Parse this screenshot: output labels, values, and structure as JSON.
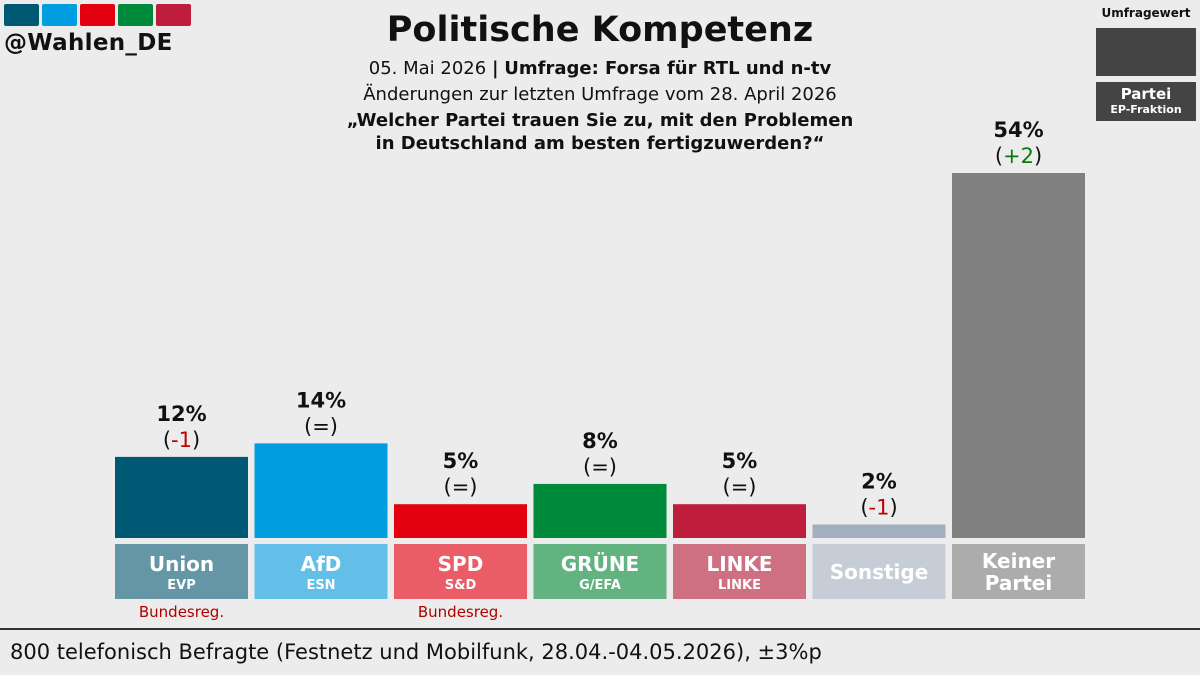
{
  "handle": "@Wahlen_DE",
  "logo_colors": [
    "#005974",
    "#009ee0",
    "#e3000f",
    "#008a3c",
    "#be1e3c"
  ],
  "header": {
    "title": "Politische Kompetenz",
    "date": "05. Mai 2026",
    "separator": "|",
    "source": "Umfrage: Forsa für RTL und n-tv",
    "changes": "Änderungen zur letzten Umfrage vom 28. April 2026",
    "question_line1": "„Welcher Partei trauen Sie zu, mit den Problemen",
    "question_line2": "in Deutschland am besten fertigzuwerden?“"
  },
  "legend": {
    "title": "Umfragewert",
    "party_label": "Partei",
    "faction_label": "EP-Fraktion"
  },
  "chart_data": {
    "type": "bar",
    "categories": [
      "Union",
      "AfD",
      "SPD",
      "GRÜNE",
      "LINKE",
      "Sonstige",
      "Keiner Partei"
    ],
    "values": [
      12,
      14,
      5,
      8,
      5,
      2,
      54
    ],
    "value_labels": [
      "12%",
      "14%",
      "5%",
      "8%",
      "5%",
      "2%",
      "54%"
    ],
    "changes": [
      "(-1)",
      "(=)",
      "(=)",
      "(=)",
      "(=)",
      "(-1)",
      "(+2)"
    ],
    "change_kind": [
      "neg",
      "eq",
      "eq",
      "eq",
      "eq",
      "neg",
      "pos"
    ],
    "factions": [
      "EVP",
      "ESN",
      "S&D",
      "G/EFA",
      "LINKE",
      "",
      ""
    ],
    "notes": [
      "Bundesreg.",
      "",
      "Bundesreg.",
      "",
      "",
      "",
      ""
    ],
    "bar_colors": [
      "#005974",
      "#009ee0",
      "#e3000f",
      "#008a3c",
      "#be1e3c",
      "#a3afbf",
      "#808080"
    ],
    "label_colors": [
      "#6496a5",
      "#63bfe8",
      "#ea5d67",
      "#63b380",
      "#cf6f82",
      "#c6cdd7",
      "#acacac"
    ],
    "change_colors": {
      "neg": "#c00000",
      "pos": "#0a7a0a",
      "eq": "#111111"
    },
    "note_color": "#b00000",
    "ylim": [
      0,
      54
    ]
  },
  "footer": "800 telefonisch Befragte (Festnetz und Mobilfunk, 28.04.-04.05.2026), ±3%p"
}
